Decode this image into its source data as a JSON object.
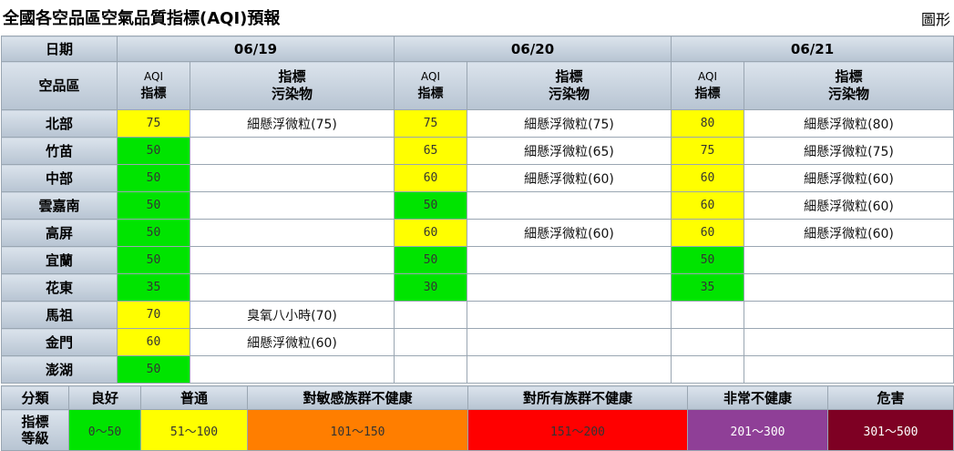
{
  "header": {
    "title": "全國各空品區空氣品質指標(AQI)預報",
    "chart_link": "圖形"
  },
  "table": {
    "date_label": "日期",
    "region_label": "空品區",
    "aqi_label_line1": "AQI",
    "aqi_label_line2": "指標",
    "pollutant_label_line1": "指標",
    "pollutant_label_line2": "污染物",
    "dates": [
      "06/19",
      "06/20",
      "06/21"
    ],
    "rows": [
      {
        "region": "北部",
        "days": [
          {
            "aqi": "75",
            "color": "yellow",
            "pollutant": "細懸浮微粒(75)"
          },
          {
            "aqi": "75",
            "color": "yellow",
            "pollutant": "細懸浮微粒(75)"
          },
          {
            "aqi": "80",
            "color": "yellow",
            "pollutant": "細懸浮微粒(80)"
          }
        ]
      },
      {
        "region": "竹苗",
        "days": [
          {
            "aqi": "50",
            "color": "green",
            "pollutant": ""
          },
          {
            "aqi": "65",
            "color": "yellow",
            "pollutant": "細懸浮微粒(65)"
          },
          {
            "aqi": "75",
            "color": "yellow",
            "pollutant": "細懸浮微粒(75)"
          }
        ]
      },
      {
        "region": "中部",
        "days": [
          {
            "aqi": "50",
            "color": "green",
            "pollutant": ""
          },
          {
            "aqi": "60",
            "color": "yellow",
            "pollutant": "細懸浮微粒(60)"
          },
          {
            "aqi": "60",
            "color": "yellow",
            "pollutant": "細懸浮微粒(60)"
          }
        ]
      },
      {
        "region": "雲嘉南",
        "days": [
          {
            "aqi": "50",
            "color": "green",
            "pollutant": ""
          },
          {
            "aqi": "50",
            "color": "green",
            "pollutant": ""
          },
          {
            "aqi": "60",
            "color": "yellow",
            "pollutant": "細懸浮微粒(60)"
          }
        ]
      },
      {
        "region": "高屏",
        "days": [
          {
            "aqi": "50",
            "color": "green",
            "pollutant": ""
          },
          {
            "aqi": "60",
            "color": "yellow",
            "pollutant": "細懸浮微粒(60)"
          },
          {
            "aqi": "60",
            "color": "yellow",
            "pollutant": "細懸浮微粒(60)"
          }
        ]
      },
      {
        "region": "宜蘭",
        "days": [
          {
            "aqi": "50",
            "color": "green",
            "pollutant": ""
          },
          {
            "aqi": "50",
            "color": "green",
            "pollutant": ""
          },
          {
            "aqi": "50",
            "color": "green",
            "pollutant": ""
          }
        ]
      },
      {
        "region": "花東",
        "days": [
          {
            "aqi": "35",
            "color": "green",
            "pollutant": ""
          },
          {
            "aqi": "30",
            "color": "green",
            "pollutant": ""
          },
          {
            "aqi": "35",
            "color": "green",
            "pollutant": ""
          }
        ]
      },
      {
        "region": "馬祖",
        "days": [
          {
            "aqi": "70",
            "color": "yellow",
            "pollutant": "臭氧八小時(70)"
          },
          {
            "aqi": "",
            "color": "empty",
            "pollutant": ""
          },
          {
            "aqi": "",
            "color": "empty",
            "pollutant": ""
          }
        ]
      },
      {
        "region": "金門",
        "days": [
          {
            "aqi": "60",
            "color": "yellow",
            "pollutant": "細懸浮微粒(60)"
          },
          {
            "aqi": "",
            "color": "empty",
            "pollutant": ""
          },
          {
            "aqi": "",
            "color": "empty",
            "pollutant": ""
          }
        ]
      },
      {
        "region": "澎湖",
        "days": [
          {
            "aqi": "50",
            "color": "green",
            "pollutant": ""
          },
          {
            "aqi": "",
            "color": "empty",
            "pollutant": ""
          },
          {
            "aqi": "",
            "color": "empty",
            "pollutant": ""
          }
        ]
      }
    ]
  },
  "legend": {
    "category_label": "分類",
    "level_label_line1": "指標",
    "level_label_line2": "等級",
    "levels": [
      {
        "name": "良好",
        "range": "0～50",
        "bg": "#00e400",
        "fg": "#333333"
      },
      {
        "name": "普通",
        "range": "51～100",
        "bg": "#ffff00",
        "fg": "#333333"
      },
      {
        "name": "對敏感族群不健康",
        "range": "101～150",
        "bg": "#ff7e00",
        "fg": "#333333"
      },
      {
        "name": "對所有族群不健康",
        "range": "151～200",
        "bg": "#ff0000",
        "fg": "#333333"
      },
      {
        "name": "非常不健康",
        "range": "201～300",
        "bg": "#8f3f97",
        "fg": "#ffffff"
      },
      {
        "name": "危害",
        "range": "301～500",
        "bg": "#7e0023",
        "fg": "#ffffff"
      }
    ]
  }
}
